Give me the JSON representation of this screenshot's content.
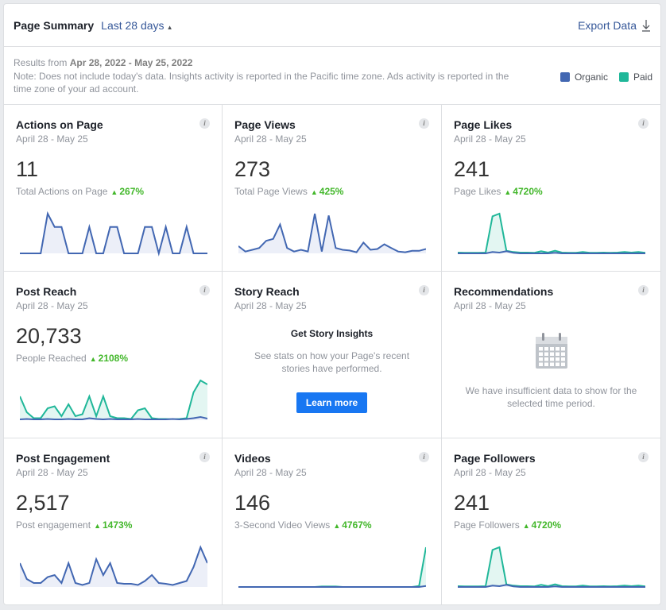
{
  "header": {
    "title": "Page Summary",
    "range": "Last 28 days",
    "export": "Export Data"
  },
  "info": {
    "results_prefix": "Results from",
    "results_range": "Apr 28, 2022 - May 25, 2022",
    "note": "Note: Does not include today's data. Insights activity is reported in the Pacific time zone. Ads activity is reported in the time zone of your ad account."
  },
  "legend": [
    {
      "label": "Organic",
      "color": "#4267b2"
    },
    {
      "label": "Paid",
      "color": "#20b799"
    }
  ],
  "cards": [
    {
      "title": "Actions on Page",
      "date": "April 28 - May 25",
      "value": "11",
      "sub": "Total Actions on Page",
      "change": "267%",
      "series": [
        {
          "type": "organic",
          "values": [
            0,
            0,
            0,
            0,
            3,
            2,
            2,
            0,
            0,
            0,
            2,
            0,
            0,
            2,
            2,
            0,
            0,
            0,
            2,
            2,
            0,
            2,
            0,
            0,
            2,
            0,
            0,
            0
          ]
        }
      ]
    },
    {
      "title": "Page Views",
      "date": "April 28 - May 25",
      "value": "273",
      "sub": "Total Page Views",
      "change": "425%",
      "series": [
        {
          "type": "organic",
          "values": [
            2,
            0.5,
            1,
            1.5,
            3.5,
            4,
            8,
            1.5,
            0.5,
            1,
            0.5,
            11,
            0.5,
            10.5,
            1.5,
            1,
            0.8,
            0.3,
            3,
            1,
            1.2,
            2.5,
            1.5,
            0.5,
            0.3,
            0.7,
            0.7,
            1.2
          ]
        }
      ]
    },
    {
      "title": "Page Likes",
      "date": "April 28 - May 25",
      "value": "241",
      "sub": "Page Likes",
      "change": "4720%",
      "series": [
        {
          "type": "paid",
          "values": [
            0.3,
            0.2,
            0.2,
            0.2,
            0.3,
            14,
            15,
            1,
            0.5,
            0.3,
            0.3,
            0.2,
            0.8,
            0.3,
            1,
            0.3,
            0.2,
            0.2,
            0.5,
            0.2,
            0.2,
            0.3,
            0.2,
            0.3,
            0.5,
            0.3,
            0.5,
            0.2
          ]
        },
        {
          "type": "organic",
          "values": [
            0,
            0,
            0,
            0,
            0,
            0.5,
            0.3,
            0.8,
            0.2,
            0,
            0,
            0,
            0,
            0,
            0.2,
            0,
            0,
            0,
            0,
            0,
            0,
            0,
            0,
            0,
            0,
            0,
            0,
            0
          ]
        }
      ]
    },
    {
      "title": "Post Reach",
      "date": "April 28 - May 25",
      "value": "20,733",
      "sub": "People Reached",
      "change": "2108%",
      "series": [
        {
          "type": "paid",
          "values": [
            6,
            2,
            0.5,
            0.5,
            3,
            3.5,
            1,
            4,
            1,
            1.5,
            6,
            1,
            6,
            1,
            0.5,
            0.5,
            0.3,
            2.5,
            3,
            0.5,
            0.3,
            0.3,
            0.2,
            0.3,
            0.5,
            7,
            10,
            9
          ]
        },
        {
          "type": "organic",
          "values": [
            0.2,
            0.3,
            0.2,
            0.2,
            0.3,
            0.2,
            0.2,
            0.3,
            0.2,
            0.2,
            0.5,
            0.3,
            0.2,
            0.3,
            0.2,
            0.2,
            0.2,
            0.3,
            0.2,
            0.2,
            0.2,
            0.2,
            0.3,
            0.2,
            0.3,
            0.5,
            0.8,
            0.4
          ]
        }
      ]
    },
    {
      "title": "Story Reach",
      "date": "April 28 - May 25",
      "cta_title": "Get Story Insights",
      "cta_text": "See stats on how your Page's recent stories have performed.",
      "cta_button": "Learn more"
    },
    {
      "title": "Recommendations",
      "date": "April 28 - May 25",
      "empty_text": "We have insufficient data to show for the selected time period."
    },
    {
      "title": "Post Engagement",
      "date": "April 28 - May 25",
      "value": "2,517",
      "sub": "Post engagement",
      "change": "1473%",
      "series": [
        {
          "type": "organic",
          "values": [
            6,
            2,
            1,
            1,
            2.5,
            3,
            1,
            6,
            1,
            0.5,
            1,
            7,
            3,
            6,
            1,
            0.8,
            0.8,
            0.5,
            1.5,
            3,
            1,
            0.8,
            0.5,
            1,
            1.5,
            5,
            10,
            6
          ]
        }
      ]
    },
    {
      "title": "Videos",
      "date": "April 28 - May 25",
      "value": "146",
      "sub": "3-Second Video Views",
      "change": "4767%",
      "series": [
        {
          "type": "paid",
          "values": [
            0,
            0,
            0,
            0,
            0,
            0,
            0,
            0,
            0,
            0,
            0,
            0,
            0.1,
            0.1,
            0.1,
            0,
            0,
            0,
            0,
            0,
            0,
            0,
            0,
            0,
            0,
            0,
            0.2,
            8
          ]
        },
        {
          "type": "organic",
          "values": [
            0,
            0,
            0,
            0,
            0,
            0,
            0,
            0,
            0,
            0,
            0,
            0,
            0,
            0,
            0,
            0,
            0,
            0,
            0,
            0,
            0,
            0,
            0,
            0,
            0,
            0,
            0,
            0.2
          ]
        }
      ]
    },
    {
      "title": "Page Followers",
      "date": "April 28 - May 25",
      "value": "241",
      "sub": "Page Followers",
      "change": "4720%",
      "series": [
        {
          "type": "paid",
          "values": [
            0.3,
            0.2,
            0.2,
            0.2,
            0.3,
            14,
            15,
            1,
            0.5,
            0.3,
            0.3,
            0.2,
            0.8,
            0.3,
            1,
            0.3,
            0.2,
            0.2,
            0.5,
            0.2,
            0.2,
            0.3,
            0.2,
            0.3,
            0.5,
            0.3,
            0.5,
            0.2
          ]
        },
        {
          "type": "organic",
          "values": [
            0,
            0,
            0,
            0,
            0,
            0.5,
            0.3,
            0.8,
            0.2,
            0,
            0,
            0,
            0,
            0,
            0.2,
            0,
            0,
            0,
            0,
            0,
            0,
            0,
            0,
            0,
            0,
            0,
            0,
            0
          ]
        }
      ]
    }
  ]
}
